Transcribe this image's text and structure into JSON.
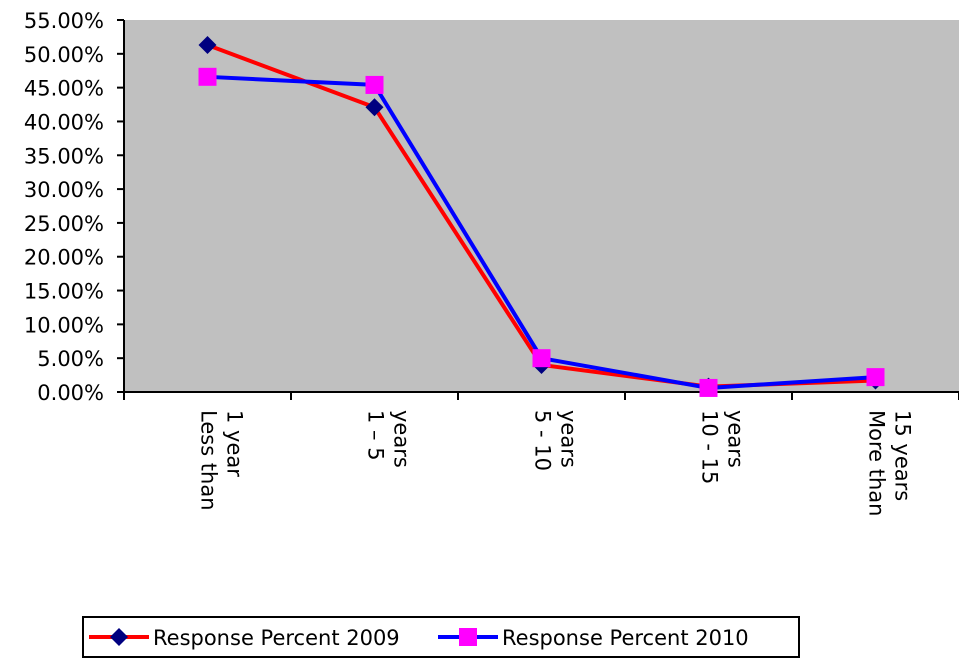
{
  "chart_data": {
    "type": "line",
    "categories": [
      [
        "Less than",
        "1 year"
      ],
      [
        "1 – 5",
        "years"
      ],
      [
        "5 - 10",
        "years"
      ],
      [
        "10 - 15",
        "years"
      ],
      [
        "More than",
        "15 years"
      ]
    ],
    "series": [
      {
        "name": "Response Percent 2009",
        "color": "#ff0000",
        "marker": "diamond",
        "marker_color": "#000080",
        "values": [
          51.3,
          42.1,
          4.0,
          0.8,
          1.7
        ]
      },
      {
        "name": "Response Percent 2010",
        "color": "#0000ff",
        "marker": "square",
        "marker_color": "#ff00ff",
        "values": [
          46.6,
          45.4,
          5.0,
          0.6,
          2.2
        ]
      }
    ],
    "ylim": [
      0,
      55
    ],
    "y_ticks": [
      "0.00%",
      "5.00%",
      "10.00%",
      "15.00%",
      "20.00%",
      "25.00%",
      "30.00%",
      "35.00%",
      "40.00%",
      "45.00%",
      "50.00%",
      "55.00%"
    ],
    "plot_background": "#c0c0c0",
    "grid": false,
    "legend_position": "bottom"
  }
}
